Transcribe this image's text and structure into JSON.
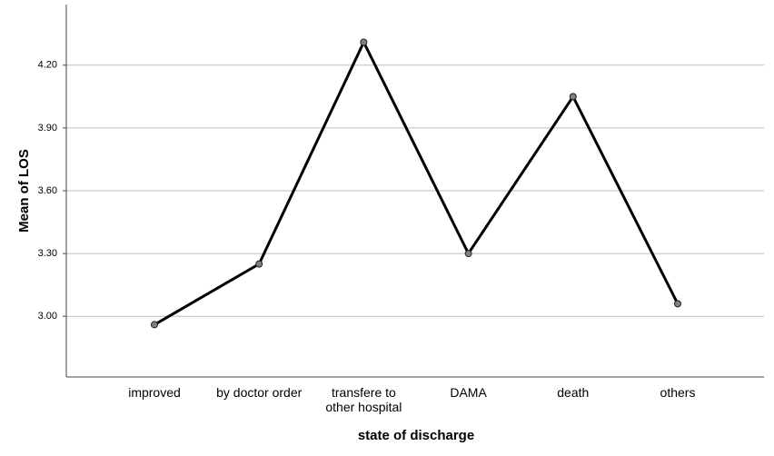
{
  "chart_data": {
    "type": "line",
    "x_label": "state of  discharge",
    "y_label": "Mean of LOS",
    "categories": [
      "improved",
      "by doctor order",
      "transfere to\nother hospital",
      "DAMA",
      "death",
      "others"
    ],
    "values": [
      2.96,
      3.25,
      4.31,
      3.3,
      4.05,
      3.06
    ],
    "color": "#000000",
    "marker_color": "#808080",
    "ylim": [
      2.71,
      4.49
    ],
    "yticks": [
      {
        "value": 3.0,
        "label": "3.00"
      },
      {
        "value": 3.3,
        "label": "3.30"
      },
      {
        "value": 3.6,
        "label": "3.60"
      },
      {
        "value": 3.9,
        "label": "3.90"
      },
      {
        "value": 4.2,
        "label": "4.20"
      }
    ],
    "grid": true
  }
}
